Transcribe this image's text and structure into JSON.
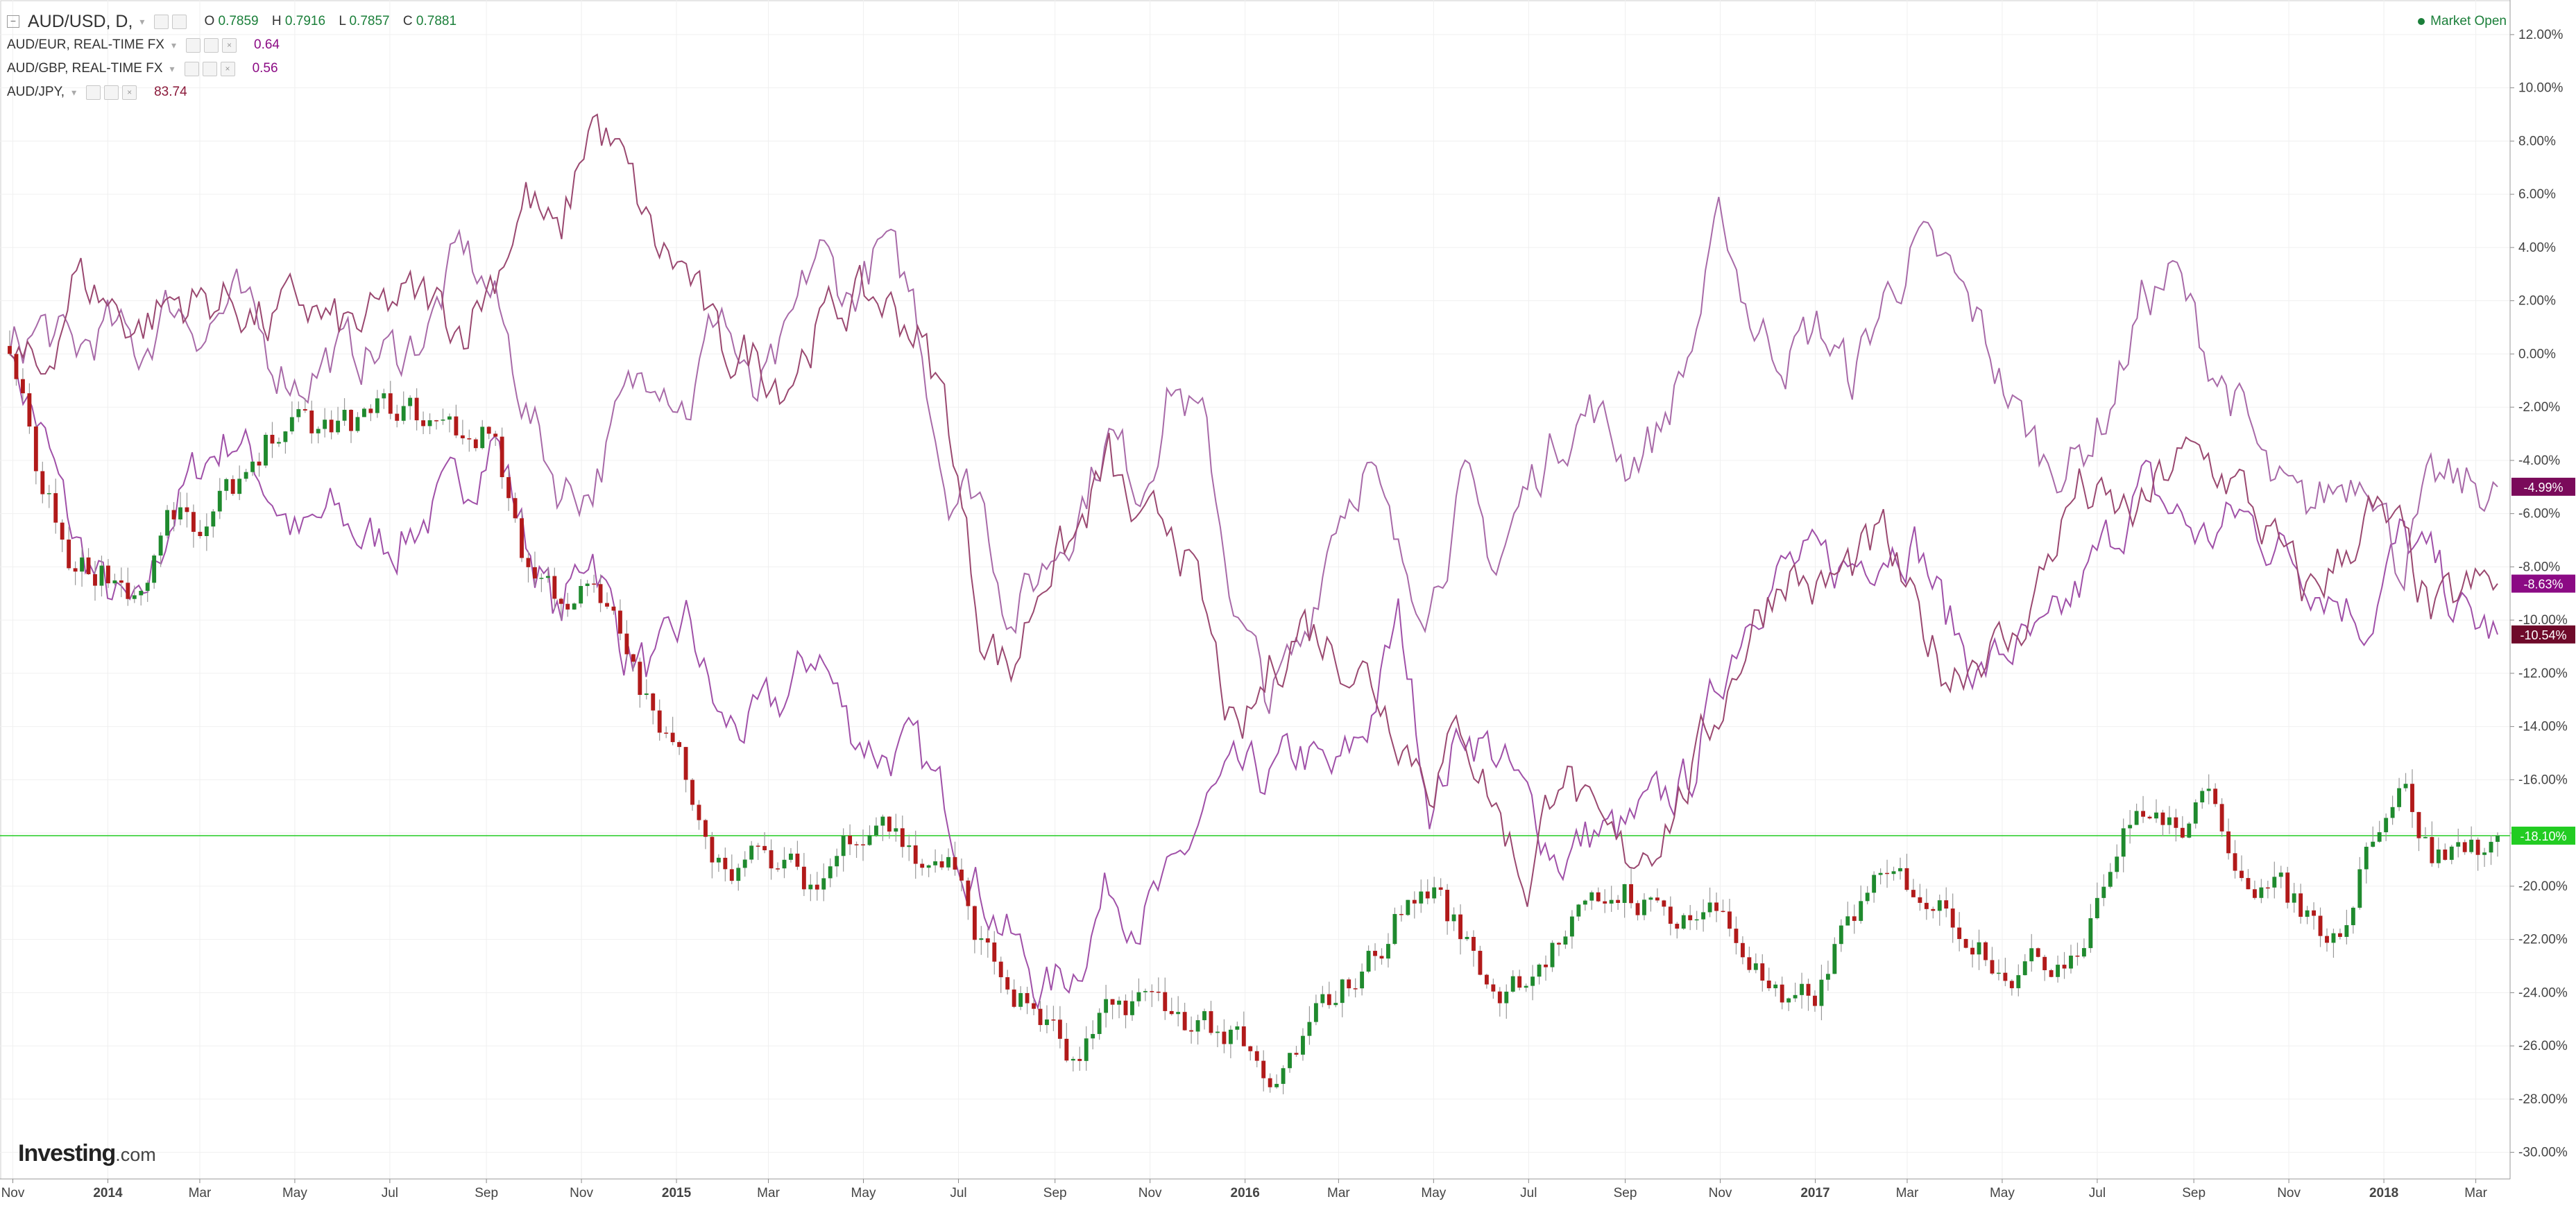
{
  "header": {
    "symbol": "AUD/USD, D,",
    "ohlc": [
      {
        "label": "O",
        "value": "0.7859"
      },
      {
        "label": "H",
        "value": "0.7916"
      },
      {
        "label": "L",
        "value": "0.7857"
      },
      {
        "label": "C",
        "value": "0.7881"
      }
    ],
    "comparisons": [
      {
        "label": "AUD/EUR, REAL-TIME FX",
        "value": "0.64",
        "color": "#8b0a84"
      },
      {
        "label": "AUD/GBP, REAL-TIME FX",
        "value": "0.56",
        "color": "#8b0a84"
      },
      {
        "label": "AUD/JPY,",
        "value": "83.74",
        "color": "#8b1a3a"
      }
    ],
    "status": "Market Open"
  },
  "brand": {
    "name": "Investing",
    "suffix": ".com"
  },
  "colors": {
    "up": "#1f8a2e",
    "down": "#b11a1a",
    "wick": "#999999",
    "eur": "#a050a8",
    "gbp": "#a86aa8",
    "jpy": "#9a4870",
    "current_line": "#22cc22",
    "grid": "#f0f0f0"
  },
  "chart_data": {
    "type": "line",
    "title": "",
    "x": [
      "2013-10-30",
      "2013-11-15",
      "2013-12-05",
      "2013-12-20",
      "2014-01-10",
      "2014-01-31",
      "2014-02-21",
      "2014-03-14",
      "2014-04-04",
      "2014-04-25",
      "2014-05-16",
      "2014-06-06",
      "2014-06-27",
      "2014-07-18",
      "2014-08-08",
      "2014-08-29",
      "2014-09-19",
      "2014-10-10",
      "2014-10-31",
      "2014-11-21",
      "2014-12-12",
      "2015-01-02",
      "2015-01-23",
      "2015-02-13",
      "2015-03-06",
      "2015-03-27",
      "2015-04-17",
      "2015-05-08",
      "2015-05-29",
      "2015-06-19",
      "2015-07-10",
      "2015-07-31",
      "2015-08-21",
      "2015-09-11",
      "2015-10-02",
      "2015-10-23",
      "2015-11-13",
      "2015-12-04",
      "2015-12-25",
      "2016-01-15",
      "2016-02-05",
      "2016-02-26",
      "2016-03-18",
      "2016-04-08",
      "2016-04-29",
      "2016-05-20",
      "2016-06-10",
      "2016-07-01",
      "2016-07-22",
      "2016-08-12",
      "2016-09-02",
      "2016-09-23",
      "2016-10-14",
      "2016-11-04",
      "2016-11-25",
      "2016-12-16",
      "2017-01-06",
      "2017-01-27",
      "2017-02-17",
      "2017-03-10",
      "2017-03-31",
      "2017-04-21",
      "2017-05-12",
      "2017-06-02",
      "2017-06-23",
      "2017-07-14",
      "2017-08-04",
      "2017-08-25",
      "2017-09-15",
      "2017-10-06",
      "2017-10-27",
      "2017-11-17",
      "2017-12-08",
      "2017-12-29",
      "2018-01-19",
      "2018-02-09",
      "2018-03-02",
      "2018-03-15"
    ],
    "series": [
      {
        "name": "AUD/USD",
        "values": [
          0,
          -5,
          -8,
          -8,
          -9,
          -6,
          -7,
          -5,
          -3,
          -3,
          -3,
          -2.5,
          -2,
          -2.5,
          -3,
          -3,
          -8,
          -9,
          -9,
          -11,
          -14,
          -16,
          -19,
          -19,
          -19.5,
          -20,
          -18,
          -17,
          -19,
          -19,
          -22,
          -24,
          -25,
          -27,
          -25,
          -24,
          -25,
          -25,
          -26,
          -28,
          -26,
          -24,
          -23,
          -21,
          -20,
          -22,
          -24,
          -23,
          -22,
          -21,
          -20,
          -21,
          -21,
          -21,
          -23,
          -25,
          -24,
          -21,
          -20,
          -20,
          -21,
          -22,
          -23,
          -23,
          -22,
          -19,
          -17,
          -18,
          -17,
          -19,
          -20,
          -21,
          -22,
          -18,
          -16,
          -19,
          -18.5,
          -18.1
        ]
      },
      {
        "name": "AUD/EUR",
        "values": [
          0,
          -3,
          -7,
          -9,
          -10,
          -6,
          -4,
          -3,
          -5,
          -7,
          -6,
          -7,
          -7,
          -6,
          -5,
          -3,
          -7,
          -10,
          -7,
          -11,
          -12,
          -10,
          -14,
          -14,
          -13,
          -11,
          -14,
          -15,
          -15,
          -17,
          -20,
          -22,
          -24,
          -23,
          -20,
          -21,
          -20,
          -17,
          -16,
          -16,
          -15,
          -16,
          -14,
          -10,
          -17,
          -14,
          -15,
          -17,
          -19,
          -18,
          -18,
          -17,
          -16,
          -12,
          -9,
          -8,
          -8,
          -8,
          -7,
          -7,
          -10,
          -12,
          -11,
          -11,
          -9,
          -7,
          -5,
          -6,
          -7,
          -6,
          -7,
          -8,
          -9,
          -10,
          -7,
          -8,
          -10,
          -10.54
        ]
      },
      {
        "name": "AUD/GBP",
        "values": [
          0,
          1,
          0,
          1,
          0,
          2,
          1,
          2,
          0,
          -1,
          0,
          0,
          0,
          1,
          4,
          2,
          -2,
          -5,
          -5,
          -2,
          0,
          -2,
          2,
          -2,
          0,
          4,
          2,
          4,
          2,
          -5,
          -5,
          -10,
          -8,
          -6,
          -3,
          -5,
          -1,
          -3,
          -10,
          -13,
          -11,
          -6,
          -4,
          -8,
          -9,
          -5,
          -8,
          -5,
          -3,
          -2,
          -4,
          -3,
          0,
          5,
          1,
          0,
          1,
          -1,
          2,
          4,
          3,
          1,
          -2,
          -4,
          -4,
          -2,
          2,
          3,
          0,
          -2,
          -5,
          -6,
          -5,
          -4,
          -8,
          -5,
          -5,
          -4.99
        ]
      },
      {
        "name": "AUD/JPY",
        "values": [
          0,
          -1,
          3,
          2,
          1,
          2,
          2,
          2,
          1,
          2,
          1,
          1,
          2,
          2,
          1,
          3,
          6,
          4,
          9,
          7,
          4,
          3,
          0,
          0,
          -1,
          1,
          2,
          2,
          1,
          -2,
          -10,
          -12,
          -8,
          -7,
          -4,
          -7,
          -6,
          -10,
          -15,
          -12,
          -10,
          -11,
          -12,
          -14,
          -16,
          -14,
          -17,
          -20,
          -15,
          -18,
          -19,
          -18,
          -16,
          -13,
          -10,
          -8,
          -9,
          -8,
          -7,
          -10,
          -12,
          -11,
          -11,
          -8,
          -5,
          -6,
          -6,
          -4,
          -4,
          -5,
          -7,
          -9,
          -8,
          -6,
          -7,
          -10,
          -9,
          -8.63
        ]
      }
    ],
    "y_ticks": [
      12,
      10,
      8,
      6,
      4,
      2,
      0,
      -2,
      -4,
      -6,
      -8,
      -10,
      -12,
      -14,
      -16,
      -18,
      -20,
      -22,
      -24,
      -26,
      -28,
      -30
    ],
    "ylim": [
      -31,
      13.3
    ],
    "y_unit": "%",
    "x_ticks": [
      {
        "date": "2013-11-01",
        "label": "Nov"
      },
      {
        "date": "2014-01-01",
        "label": "2014"
      },
      {
        "date": "2014-03-01",
        "label": "Mar"
      },
      {
        "date": "2014-05-01",
        "label": "May"
      },
      {
        "date": "2014-07-01",
        "label": "Jul"
      },
      {
        "date": "2014-09-01",
        "label": "Sep"
      },
      {
        "date": "2014-11-01",
        "label": "Nov"
      },
      {
        "date": "2015-01-01",
        "label": "2015"
      },
      {
        "date": "2015-03-01",
        "label": "Mar"
      },
      {
        "date": "2015-05-01",
        "label": "May"
      },
      {
        "date": "2015-07-01",
        "label": "Jul"
      },
      {
        "date": "2015-09-01",
        "label": "Sep"
      },
      {
        "date": "2015-11-01",
        "label": "Nov"
      },
      {
        "date": "2016-01-01",
        "label": "2016"
      },
      {
        "date": "2016-03-01",
        "label": "Mar"
      },
      {
        "date": "2016-05-01",
        "label": "May"
      },
      {
        "date": "2016-07-01",
        "label": "Jul"
      },
      {
        "date": "2016-09-01",
        "label": "Sep"
      },
      {
        "date": "2016-11-01",
        "label": "Nov"
      },
      {
        "date": "2017-01-01",
        "label": "2017"
      },
      {
        "date": "2017-03-01",
        "label": "Mar"
      },
      {
        "date": "2017-05-01",
        "label": "May"
      },
      {
        "date": "2017-07-01",
        "label": "Jul"
      },
      {
        "date": "2017-09-01",
        "label": "Sep"
      },
      {
        "date": "2017-11-01",
        "label": "Nov"
      },
      {
        "date": "2018-01-01",
        "label": "2018"
      },
      {
        "date": "2018-03-01",
        "label": "Mar"
      }
    ],
    "last_value_labels": [
      {
        "series": "AUD/GBP",
        "value": -4.99,
        "label": "-4.99%",
        "bg": "#7a0a5a"
      },
      {
        "series": "AUD/JPY",
        "value": -8.63,
        "label": "-8.63%",
        "bg": "#8b0a84"
      },
      {
        "series": "AUD/EUR",
        "value": -10.54,
        "label": "-10.54%",
        "bg": "#6e0a2a"
      },
      {
        "series": "AUD/USD",
        "value": -18.1,
        "label": "-18.10%",
        "bg": "#22cc22"
      }
    ],
    "current_value": -18.1,
    "grid": true,
    "legend_position": "top-left"
  }
}
